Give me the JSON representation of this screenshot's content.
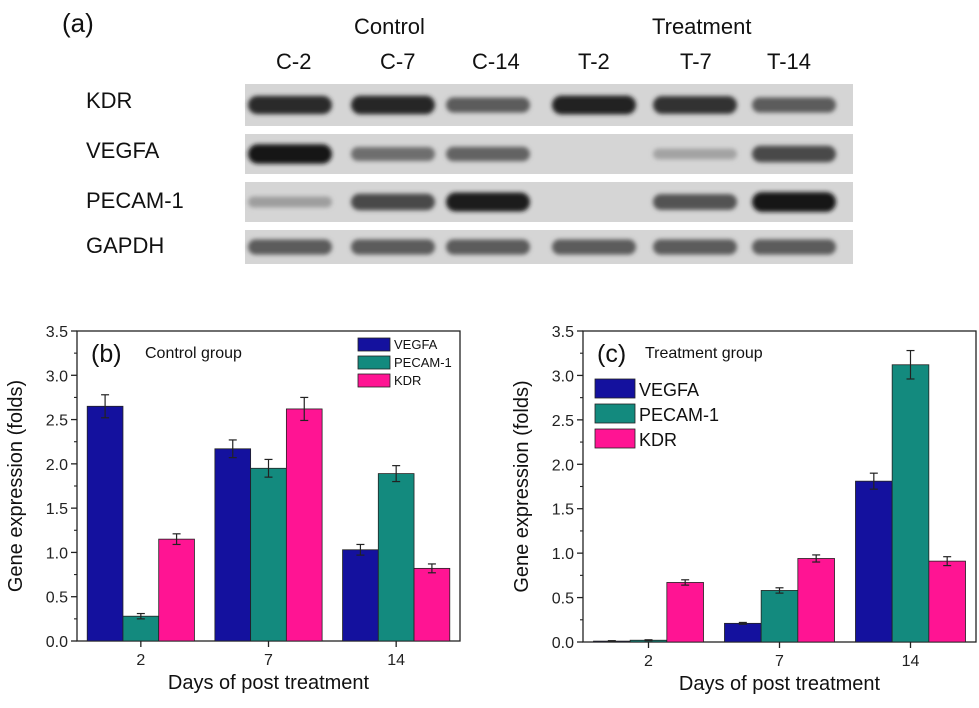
{
  "figure": {
    "panel_a_label": "(a)",
    "gel": {
      "group_labels": [
        "Control",
        "Treatment"
      ],
      "lane_labels": [
        "C-2",
        "C-7",
        "C-14",
        "T-2",
        "T-7",
        "T-14"
      ],
      "gene_labels": [
        "KDR",
        "VEGFA",
        "PECAM-1",
        "GAPDH"
      ],
      "band_intensity": [
        [
          0.85,
          0.88,
          0.6,
          0.9,
          0.82,
          0.6
        ],
        [
          0.95,
          0.5,
          0.55,
          0.0,
          0.22,
          0.7
        ],
        [
          0.25,
          0.7,
          0.92,
          0.0,
          0.65,
          0.98
        ],
        [
          0.6,
          0.6,
          0.6,
          0.6,
          0.6,
          0.6
        ]
      ]
    }
  },
  "colors": {
    "VEGFA": "#14119e",
    "PECAM-1": "#138a7e",
    "KDR": "#ff1493"
  },
  "chart_data": [
    {
      "type": "bar",
      "panel_label": "(b)",
      "title": "Control group",
      "xlabel": "Days of post treatment",
      "ylabel": "Gene expression (folds)",
      "categories": [
        "2",
        "7",
        "14"
      ],
      "ylim": [
        0,
        3.5
      ],
      "yticks": [
        "0.0",
        "0.5",
        "1.0",
        "1.5",
        "2.0",
        "2.5",
        "3.0",
        "3.5"
      ],
      "legend_placement": "top-right",
      "series": [
        {
          "name": "VEGFA",
          "values": [
            2.65,
            2.17,
            1.03
          ],
          "errors": [
            0.13,
            0.1,
            0.06
          ]
        },
        {
          "name": "PECAM-1",
          "values": [
            0.28,
            1.95,
            1.89
          ],
          "errors": [
            0.03,
            0.1,
            0.09
          ]
        },
        {
          "name": "KDR",
          "values": [
            1.15,
            2.62,
            0.82
          ],
          "errors": [
            0.06,
            0.13,
            0.05
          ]
        }
      ]
    },
    {
      "type": "bar",
      "panel_label": "(c)",
      "title": "Treatment group",
      "xlabel": "Days of post treatment",
      "ylabel": "Gene expression (folds)",
      "categories": [
        "2",
        "7",
        "14"
      ],
      "ylim": [
        0,
        3.5
      ],
      "yticks": [
        "0.0",
        "0.5",
        "1.0",
        "1.5",
        "2.0",
        "2.5",
        "3.0",
        "3.5"
      ],
      "legend_placement": "top-left",
      "series": [
        {
          "name": "VEGFA",
          "values": [
            0.01,
            0.21,
            1.81
          ],
          "errors": [
            0.005,
            0.01,
            0.09
          ]
        },
        {
          "name": "PECAM-1",
          "values": [
            0.02,
            0.58,
            3.12
          ],
          "errors": [
            0.005,
            0.03,
            0.16
          ]
        },
        {
          "name": "KDR",
          "values": [
            0.67,
            0.94,
            0.91
          ],
          "errors": [
            0.03,
            0.04,
            0.05
          ]
        }
      ]
    }
  ]
}
